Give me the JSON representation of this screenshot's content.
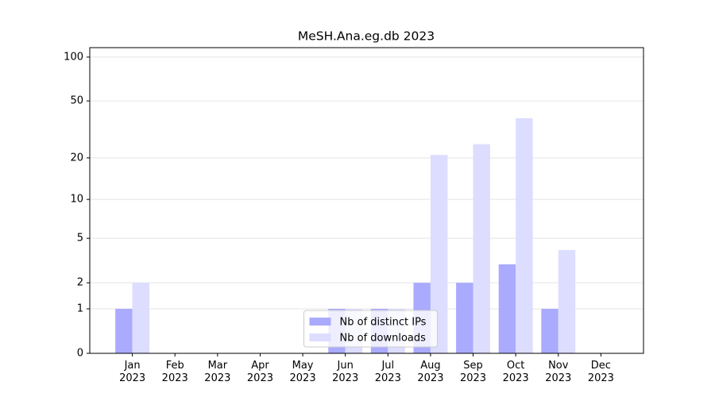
{
  "chart_data": {
    "type": "bar",
    "title": "MeSH.Ana.eg.db 2023",
    "categories": [
      "Jan\n2023",
      "Feb\n2023",
      "Mar\n2023",
      "Apr\n2023",
      "May\n2023",
      "Jun\n2023",
      "Jul\n2023",
      "Aug\n2023",
      "Sep\n2023",
      "Oct\n2023",
      "Nov\n2023",
      "Dec\n2023"
    ],
    "series": [
      {
        "name": "Nb of distinct IPs",
        "color": "#aaaaff",
        "values": [
          1,
          0,
          0,
          0,
          0,
          1,
          1,
          2,
          2,
          3,
          1,
          0
        ]
      },
      {
        "name": "Nb of downloads",
        "color": "#ddddff",
        "values": [
          2,
          0,
          0,
          0,
          0,
          1,
          1,
          21,
          25,
          38,
          4,
          0
        ]
      }
    ],
    "yscale": "log1p",
    "ylim": [
      0,
      116
    ],
    "yticks": [
      0,
      1,
      2,
      5,
      10,
      20,
      50,
      100
    ],
    "grid": true,
    "legend": "lower center"
  }
}
